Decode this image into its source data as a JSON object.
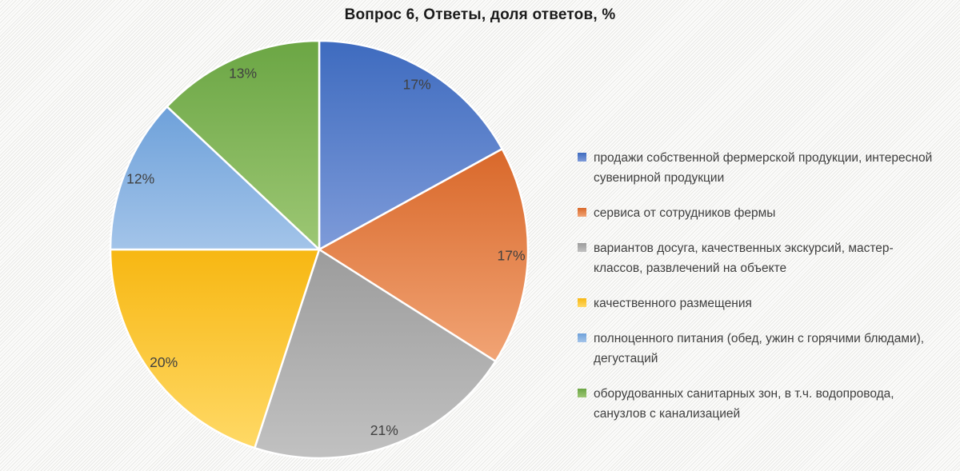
{
  "title": "Вопрос 6, Ответы, доля ответов, %",
  "colors": {
    "background_base": "#fcfcfb",
    "background_stripe": "#e9e9e6",
    "slice_border": "#ffffff",
    "data_label_color": "#404040",
    "legend_text_color": "#3f3f3f",
    "title_color": "#1a1a1a"
  },
  "chart_data": {
    "type": "pie",
    "title": "Вопрос 6, Ответы, доля ответов, %",
    "unit": "%",
    "legend_position": "right",
    "start_angle_deg": 0,
    "direction": "clockwise",
    "data_labels": "percent, inside-end",
    "slices": [
      {
        "label": "продажи собственной фермерской продукции, интересной сувенирной продукции",
        "value": 17,
        "percent_label": "17%",
        "color_top": "#3e6bbf",
        "color_bottom": "#7e9bd9"
      },
      {
        "label": "сервиса от сотрудников фермы",
        "value": 17,
        "percent_label": "17%",
        "color_top": "#d9682a",
        "color_bottom": "#f1a475"
      },
      {
        "label": "вариантов досуга, качественных экскурсий, мастер-классов, развлечений на объекте",
        "value": 21,
        "percent_label": "21%",
        "color_top": "#9c9c9c",
        "color_bottom": "#c1c1c1"
      },
      {
        "label": "качественного размещения",
        "value": 20,
        "percent_label": "20%",
        "color_top": "#f7b712",
        "color_bottom": "#ffd966"
      },
      {
        "label": "полноценного питания (обед, ужин с горячими блюдами), дегустаций",
        "value": 12,
        "percent_label": "12%",
        "color_top": "#6ea1da",
        "color_bottom": "#a3c4e9"
      },
      {
        "label": "оборудованных санитарных зон, в т.ч. водопровода, санузлов с канализацией",
        "value": 13,
        "percent_label": "13%",
        "color_top": "#6ba644",
        "color_bottom": "#9dc774"
      }
    ]
  }
}
